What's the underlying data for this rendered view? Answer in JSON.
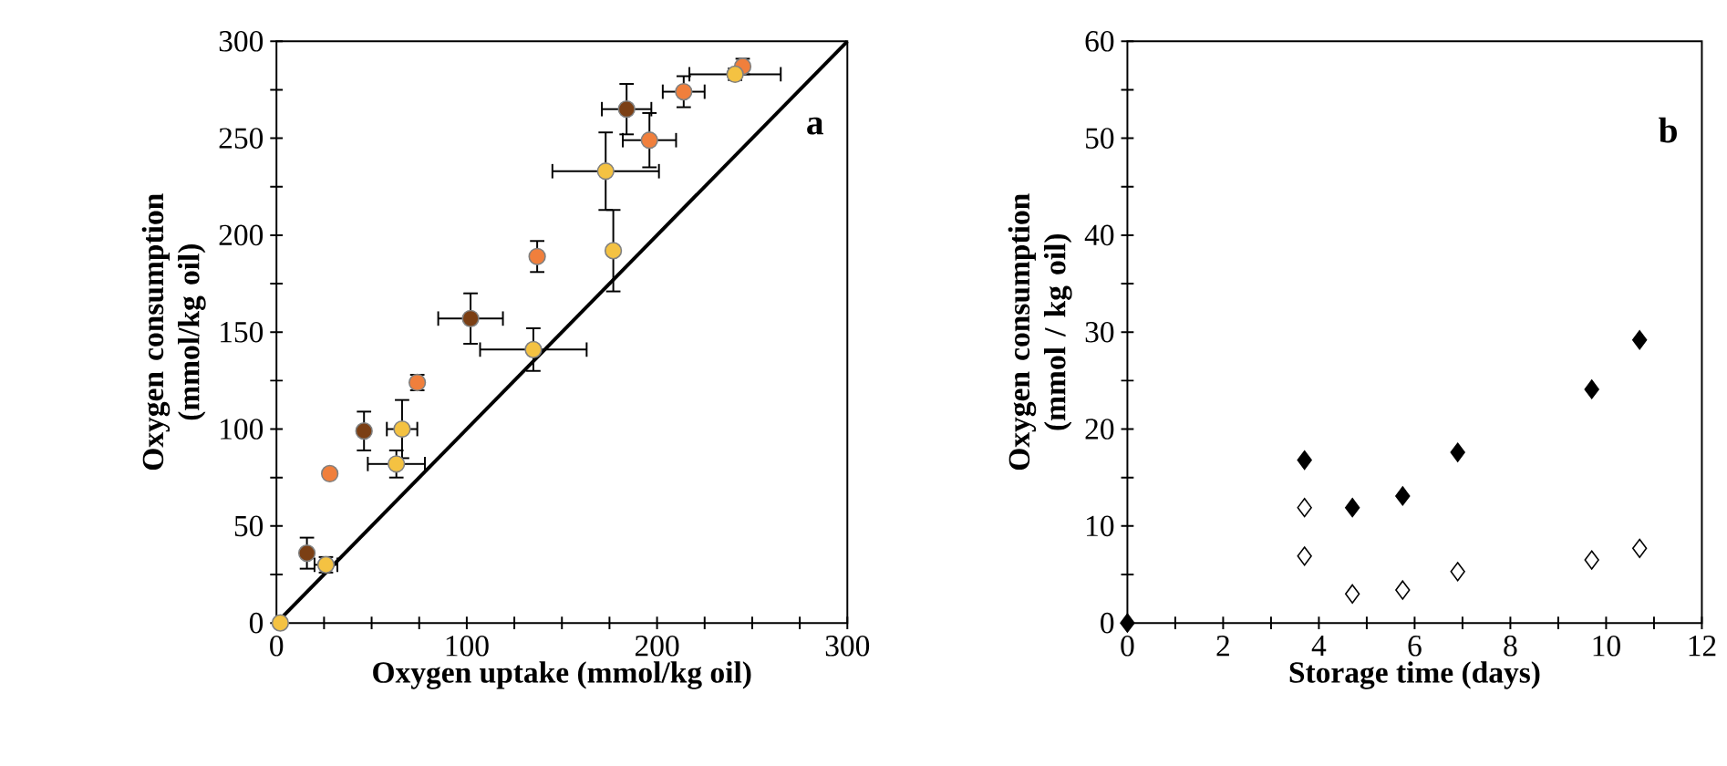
{
  "chart_data": [
    {
      "type": "scatter",
      "xlabel": "Oxygen uptake (mmol/kg oil)",
      "ylabel": "Oxygen consumption (mmol/kg oil)",
      "annotations": [
        "a"
      ],
      "xlim": [
        0,
        300
      ],
      "ylim": [
        0,
        300
      ],
      "xticks": [
        0,
        {
          "value": 25,
          "label": null
        },
        {
          "value": 50,
          "label": null
        },
        {
          "value": 75,
          "label": null
        },
        100,
        {
          "value": 125,
          "label": null
        },
        {
          "value": 150,
          "label": null
        },
        {
          "value": 175,
          "label": null
        },
        200,
        {
          "value": 225,
          "label": null
        },
        {
          "value": 250,
          "label": null
        },
        {
          "value": 275,
          "label": null
        },
        300
      ],
      "yticks": [
        0,
        {
          "value": 25,
          "label": null
        },
        50,
        {
          "value": 75,
          "label": null
        },
        100,
        {
          "value": 125,
          "label": null
        },
        150,
        {
          "value": 175,
          "label": null
        },
        200,
        {
          "value": 225,
          "label": null
        },
        250,
        {
          "value": 275,
          "label": null
        },
        300
      ],
      "series": [
        {
          "type": "line",
          "color": "#000000",
          "x": [
            0,
            300
          ],
          "values": [
            0,
            300
          ]
        },
        {
          "marker": "circle",
          "color": "#7b3f14",
          "x": [
            16,
            46,
            102,
            184
          ],
          "values": [
            36,
            99,
            157,
            265
          ],
          "xerrors": [
            null,
            null,
            17,
            13
          ],
          "errors": [
            8,
            10,
            13,
            13
          ]
        },
        {
          "marker": "circle",
          "color": "#f07f3c",
          "x": [
            28,
            74,
            137,
            196,
            214,
            245
          ],
          "values": [
            77,
            124,
            189,
            249,
            274,
            287
          ],
          "xerrors": [
            null,
            null,
            null,
            14,
            11,
            null
          ],
          "errors": [
            null,
            4,
            8,
            14,
            8,
            4
          ]
        },
        {
          "marker": "circle",
          "color": "#f4c242",
          "x": [
            2,
            26,
            63,
            66,
            135,
            177,
            173,
            241
          ],
          "values": [
            0,
            30,
            82,
            100,
            141,
            192,
            233,
            283
          ],
          "xerrors": [
            null,
            6,
            15,
            8,
            28,
            null,
            28,
            24
          ],
          "errors": [
            null,
            4,
            7,
            15,
            11,
            21,
            20,
            3
          ]
        }
      ]
    },
    {
      "type": "scatter",
      "xlabel": "Storage time (days)",
      "ylabel": "Oxygen consumption (mmol / kg oil)",
      "annotations": [
        "b"
      ],
      "marker": "diamond",
      "xlim": [
        0,
        12
      ],
      "ylim": [
        0,
        60
      ],
      "xticks": [
        0,
        {
          "value": 1,
          "label": null
        },
        2,
        {
          "value": 3,
          "label": null
        },
        4,
        {
          "value": 5,
          "label": null
        },
        6,
        {
          "value": 7,
          "label": null
        },
        8,
        {
          "value": 9,
          "label": null
        },
        10,
        {
          "value": 11,
          "label": null
        },
        12
      ],
      "yticks": [
        0,
        {
          "value": 5,
          "label": null
        },
        10,
        {
          "value": 15,
          "label": null
        },
        20,
        {
          "value": 25,
          "label": null
        },
        30,
        {
          "value": 35,
          "label": null
        },
        40,
        {
          "value": 45,
          "label": null
        },
        50,
        {
          "value": 55,
          "label": null
        },
        60
      ],
      "series": [
        {
          "color": "#ffffff",
          "x": [
            3.7,
            3.7,
            4.7,
            5.75,
            6.9,
            9.7,
            10.7
          ],
          "values": [
            11.9,
            6.9,
            3.0,
            3.4,
            5.3,
            6.5,
            7.7
          ]
        },
        {
          "color": "#000000",
          "x": [
            0,
            3.7,
            4.7,
            5.75,
            6.9,
            9.7,
            10.7
          ],
          "values": [
            0,
            16.8,
            11.9,
            13.1,
            17.6,
            24.1,
            29.2
          ]
        }
      ]
    }
  ]
}
